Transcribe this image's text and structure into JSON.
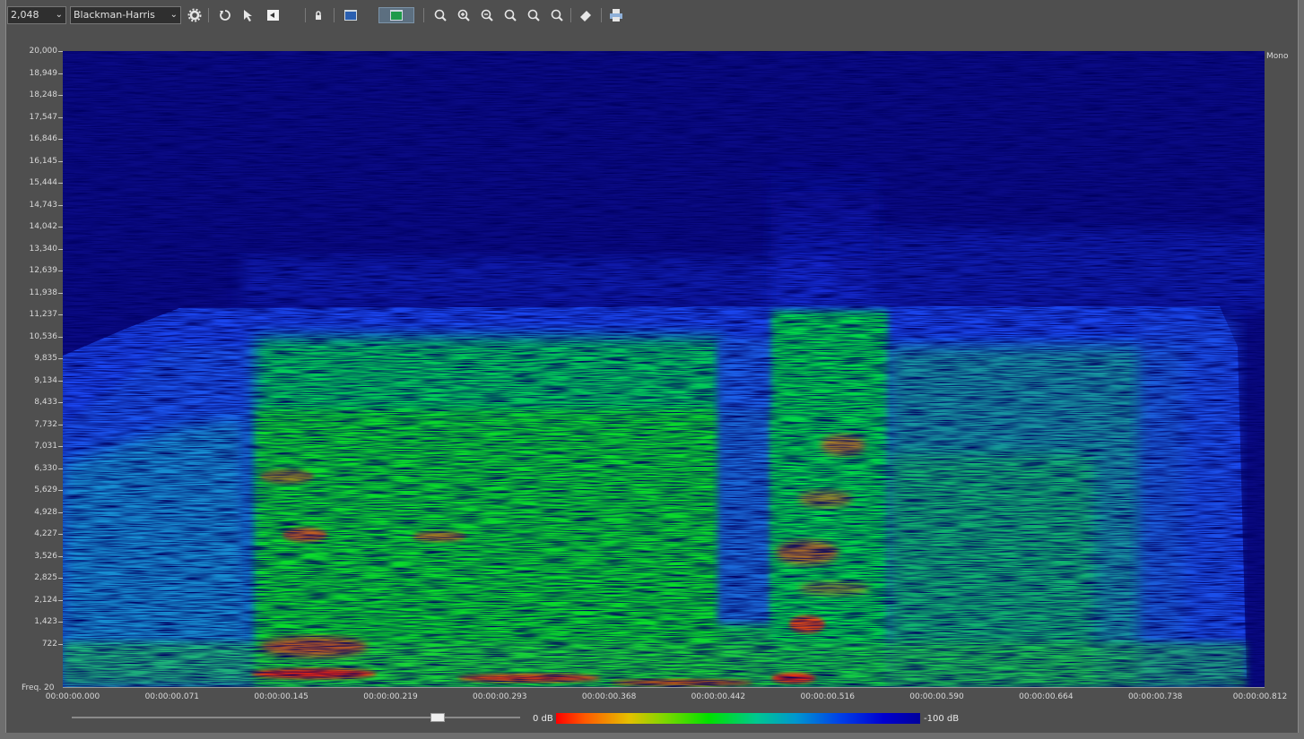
{
  "toolbar": {
    "fft_size": "2,048",
    "window_function": "Blackman-Harris",
    "icons": [
      "settings-icon",
      "reset-icon",
      "cursor-icon",
      "view-icon",
      "lock-icon",
      "spectrum-view-icon",
      "spectrogram-view-icon",
      "zoom-icon",
      "zoom-in-icon",
      "zoom-out-icon",
      "zoom-fit-icon",
      "zoom-selection-icon",
      "zoom-full-icon",
      "eraser-icon",
      "print-icon"
    ]
  },
  "channel_label": "Mono",
  "y_axis": {
    "label": "Freq.",
    "ticks": [
      "20,000",
      "18,949",
      "18,248",
      "17,547",
      "16,846",
      "16,145",
      "15,444",
      "14,743",
      "14,042",
      "13,340",
      "12,639",
      "11,938",
      "11,237",
      "10,536",
      "9,835",
      "9,134",
      "8,433",
      "7,732",
      "7,031",
      "6,330",
      "5,629",
      "4,928",
      "4,227",
      "3,526",
      "2,825",
      "2,124",
      "1,423",
      "722",
      "20"
    ]
  },
  "x_axis": {
    "ticks": [
      "00:00:00.000",
      "00:00:00.071",
      "00:00:00.145",
      "00:00:00.219",
      "00:00:00.293",
      "00:00:00.368",
      "00:00:00.442",
      "00:00:00.516",
      "00:00:00.590",
      "00:00:00.664",
      "00:00:00.738",
      "00:00:00.812"
    ]
  },
  "colorbar": {
    "max_label": "0 dB",
    "min_label": "-100 dB"
  },
  "colors": {
    "background": "#0a0a84",
    "panel": "#4f4f4f"
  }
}
